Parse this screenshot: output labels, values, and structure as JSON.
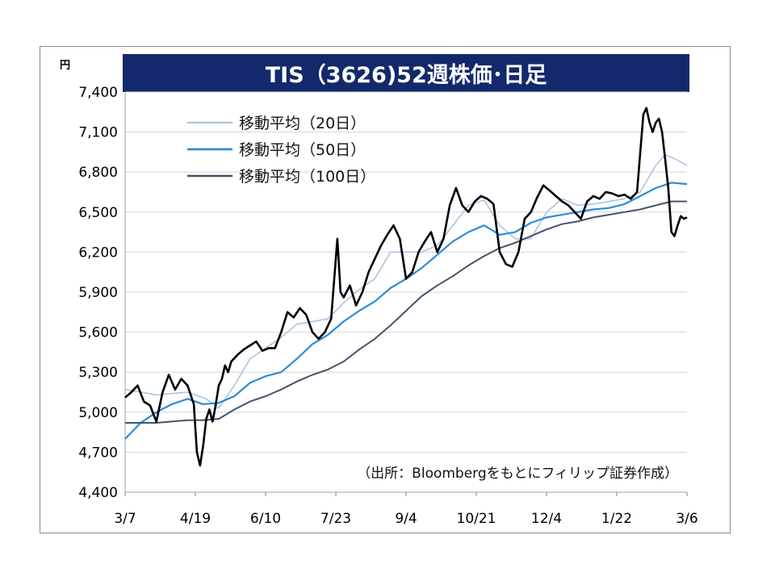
{
  "chart_data": {
    "type": "line",
    "title": "TIS（3626)52週株価･日足",
    "unit_label": "円",
    "ylim": [
      4400,
      7400
    ],
    "yticks": [
      4400,
      4700,
      5000,
      5300,
      5600,
      5900,
      6200,
      6500,
      6800,
      7100,
      7400
    ],
    "ytick_labels": [
      "4,400",
      "4,700",
      "5,000",
      "5,300",
      "5,600",
      "5,900",
      "6,200",
      "6,500",
      "6,800",
      "7,100",
      "7,400"
    ],
    "x_ticks": [
      "3/7",
      "4/19",
      "6/10",
      "7/23",
      "9/4",
      "10/21",
      "12/4",
      "1/22",
      "3/6"
    ],
    "legend_position": "top-left",
    "source_note": "（出所：Bloombergをもとにフィリップ証券作成）",
    "price_color": "#000000",
    "price_series": [
      [
        0,
        5110
      ],
      [
        2,
        5150
      ],
      [
        4,
        5200
      ],
      [
        6,
        5080
      ],
      [
        8,
        5050
      ],
      [
        10,
        4930
      ],
      [
        12,
        5150
      ],
      [
        14,
        5280
      ],
      [
        16,
        5170
      ],
      [
        18,
        5250
      ],
      [
        20,
        5200
      ],
      [
        22,
        5060
      ],
      [
        23,
        4700
      ],
      [
        24,
        4600
      ],
      [
        25,
        4750
      ],
      [
        26,
        4950
      ],
      [
        27,
        5020
      ],
      [
        28,
        4930
      ],
      [
        29,
        5050
      ],
      [
        30,
        5200
      ],
      [
        31,
        5250
      ],
      [
        32,
        5350
      ],
      [
        33,
        5300
      ],
      [
        34,
        5380
      ],
      [
        36,
        5430
      ],
      [
        38,
        5470
      ],
      [
        40,
        5500
      ],
      [
        42,
        5530
      ],
      [
        44,
        5460
      ],
      [
        46,
        5480
      ],
      [
        48,
        5480
      ],
      [
        50,
        5600
      ],
      [
        52,
        5750
      ],
      [
        54,
        5710
      ],
      [
        56,
        5780
      ],
      [
        58,
        5730
      ],
      [
        60,
        5600
      ],
      [
        62,
        5550
      ],
      [
        64,
        5600
      ],
      [
        66,
        5700
      ],
      [
        68,
        6300
      ],
      [
        69,
        5900
      ],
      [
        70,
        5860
      ],
      [
        72,
        5950
      ],
      [
        74,
        5800
      ],
      [
        76,
        5900
      ],
      [
        78,
        6050
      ],
      [
        80,
        6150
      ],
      [
        82,
        6250
      ],
      [
        84,
        6330
      ],
      [
        86,
        6400
      ],
      [
        88,
        6300
      ],
      [
        90,
        6000
      ],
      [
        92,
        6050
      ],
      [
        94,
        6200
      ],
      [
        96,
        6280
      ],
      [
        98,
        6350
      ],
      [
        100,
        6200
      ],
      [
        102,
        6300
      ],
      [
        104,
        6550
      ],
      [
        106,
        6680
      ],
      [
        108,
        6550
      ],
      [
        110,
        6500
      ],
      [
        112,
        6580
      ],
      [
        114,
        6620
      ],
      [
        116,
        6600
      ],
      [
        118,
        6560
      ],
      [
        120,
        6200
      ],
      [
        122,
        6110
      ],
      [
        124,
        6090
      ],
      [
        126,
        6200
      ],
      [
        128,
        6450
      ],
      [
        130,
        6500
      ],
      [
        132,
        6610
      ],
      [
        134,
        6700
      ],
      [
        136,
        6660
      ],
      [
        138,
        6620
      ],
      [
        140,
        6580
      ],
      [
        142,
        6550
      ],
      [
        144,
        6500
      ],
      [
        146,
        6450
      ],
      [
        148,
        6580
      ],
      [
        150,
        6620
      ],
      [
        152,
        6600
      ],
      [
        154,
        6650
      ],
      [
        156,
        6640
      ],
      [
        158,
        6620
      ],
      [
        160,
        6630
      ],
      [
        162,
        6600
      ],
      [
        164,
        6650
      ],
      [
        166,
        7230
      ],
      [
        167,
        7280
      ],
      [
        168,
        7170
      ],
      [
        169,
        7100
      ],
      [
        170,
        7170
      ],
      [
        171,
        7200
      ],
      [
        172,
        7100
      ],
      [
        173,
        6900
      ],
      [
        174,
        6680
      ],
      [
        175,
        6350
      ],
      [
        176,
        6320
      ],
      [
        177,
        6400
      ],
      [
        178,
        6470
      ],
      [
        179,
        6450
      ],
      [
        180,
        6460
      ]
    ],
    "series": [
      {
        "name": "移動平均（20日）",
        "color": "#a9c4e4",
        "values": [
          [
            0,
            5170
          ],
          [
            10,
            5130
          ],
          [
            20,
            5150
          ],
          [
            26,
            5100
          ],
          [
            30,
            5030
          ],
          [
            35,
            5200
          ],
          [
            40,
            5400
          ],
          [
            45,
            5480
          ],
          [
            50,
            5560
          ],
          [
            55,
            5660
          ],
          [
            60,
            5680
          ],
          [
            65,
            5700
          ],
          [
            70,
            5820
          ],
          [
            75,
            5920
          ],
          [
            80,
            6000
          ],
          [
            85,
            6200
          ],
          [
            90,
            6200
          ],
          [
            95,
            6200
          ],
          [
            100,
            6250
          ],
          [
            105,
            6400
          ],
          [
            110,
            6550
          ],
          [
            115,
            6590
          ],
          [
            120,
            6400
          ],
          [
            125,
            6300
          ],
          [
            130,
            6300
          ],
          [
            135,
            6500
          ],
          [
            140,
            6600
          ],
          [
            145,
            6550
          ],
          [
            150,
            6560
          ],
          [
            155,
            6580
          ],
          [
            160,
            6600
          ],
          [
            165,
            6650
          ],
          [
            170,
            6850
          ],
          [
            173,
            6930
          ],
          [
            176,
            6900
          ],
          [
            180,
            6850
          ]
        ]
      },
      {
        "name": "移動平均（50日）",
        "color": "#2e8bd6",
        "values": [
          [
            0,
            4800
          ],
          [
            5,
            4920
          ],
          [
            10,
            5000
          ],
          [
            15,
            5060
          ],
          [
            20,
            5100
          ],
          [
            25,
            5060
          ],
          [
            30,
            5070
          ],
          [
            35,
            5120
          ],
          [
            40,
            5220
          ],
          [
            45,
            5270
          ],
          [
            50,
            5300
          ],
          [
            55,
            5400
          ],
          [
            60,
            5510
          ],
          [
            65,
            5580
          ],
          [
            70,
            5680
          ],
          [
            75,
            5760
          ],
          [
            80,
            5830
          ],
          [
            85,
            5930
          ],
          [
            90,
            6000
          ],
          [
            95,
            6080
          ],
          [
            100,
            6180
          ],
          [
            105,
            6280
          ],
          [
            110,
            6350
          ],
          [
            115,
            6400
          ],
          [
            120,
            6330
          ],
          [
            125,
            6350
          ],
          [
            130,
            6420
          ],
          [
            135,
            6460
          ],
          [
            140,
            6480
          ],
          [
            145,
            6500
          ],
          [
            150,
            6520
          ],
          [
            155,
            6530
          ],
          [
            160,
            6560
          ],
          [
            165,
            6620
          ],
          [
            170,
            6680
          ],
          [
            175,
            6720
          ],
          [
            180,
            6710
          ]
        ]
      },
      {
        "name": "移動平均（100日）",
        "color": "#44546a",
        "values": [
          [
            0,
            4920
          ],
          [
            10,
            4920
          ],
          [
            20,
            4940
          ],
          [
            25,
            4940
          ],
          [
            30,
            4950
          ],
          [
            35,
            5020
          ],
          [
            40,
            5080
          ],
          [
            45,
            5120
          ],
          [
            50,
            5170
          ],
          [
            55,
            5230
          ],
          [
            60,
            5280
          ],
          [
            65,
            5320
          ],
          [
            70,
            5380
          ],
          [
            75,
            5470
          ],
          [
            80,
            5550
          ],
          [
            85,
            5650
          ],
          [
            90,
            5760
          ],
          [
            95,
            5870
          ],
          [
            100,
            5950
          ],
          [
            105,
            6020
          ],
          [
            110,
            6100
          ],
          [
            115,
            6170
          ],
          [
            120,
            6230
          ],
          [
            125,
            6270
          ],
          [
            130,
            6320
          ],
          [
            135,
            6370
          ],
          [
            140,
            6410
          ],
          [
            145,
            6430
          ],
          [
            150,
            6460
          ],
          [
            155,
            6480
          ],
          [
            160,
            6500
          ],
          [
            165,
            6520
          ],
          [
            170,
            6550
          ],
          [
            175,
            6580
          ],
          [
            180,
            6580
          ]
        ]
      }
    ]
  }
}
